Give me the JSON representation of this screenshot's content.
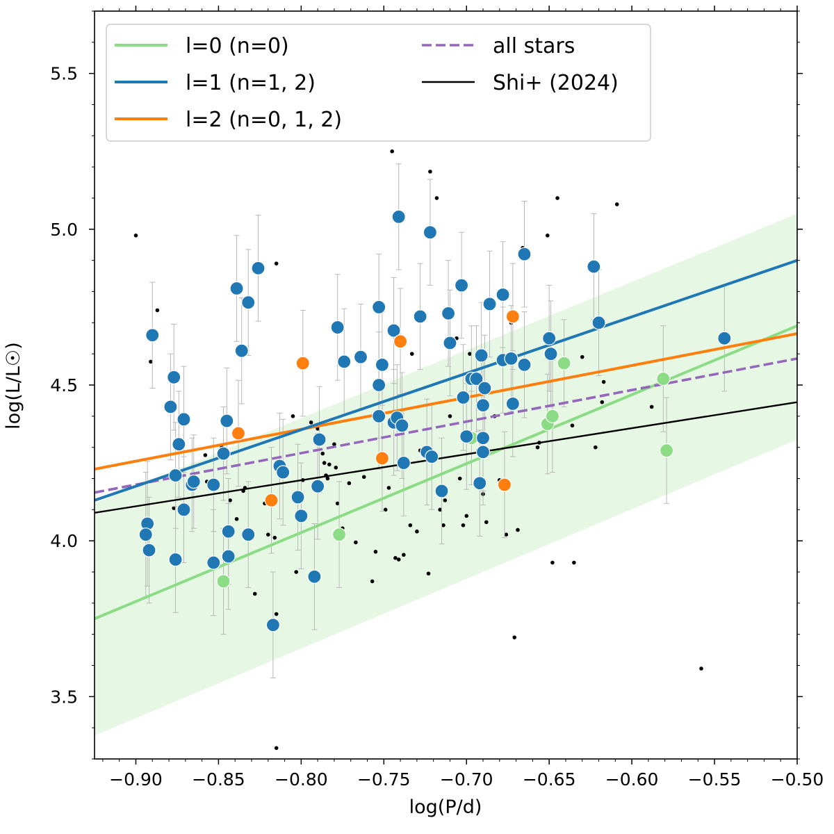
{
  "chart_data": {
    "type": "scatter",
    "title": "",
    "xlabel": "log(P/d)",
    "ylabel": "log(L/L☉)",
    "xlim": [
      -0.925,
      -0.5
    ],
    "ylim": [
      3.3,
      5.7
    ],
    "xticks": [
      -0.9,
      -0.85,
      -0.8,
      -0.75,
      -0.7,
      -0.65,
      -0.6,
      -0.55,
      -0.5
    ],
    "xtick_labels": [
      "−0.90",
      "−0.85",
      "−0.80",
      "−0.75",
      "−0.70",
      "−0.65",
      "−0.60",
      "−0.55",
      "−0.50"
    ],
    "yticks": [
      3.5,
      4.0,
      4.5,
      5.0,
      5.5
    ],
    "ytick_labels": [
      "3.5",
      "4.0",
      "4.5",
      "5.0",
      "5.5"
    ],
    "grid": false,
    "legend_position": "top-left",
    "colors": {
      "l0": "#8bdc85",
      "l1": "#1f77b4",
      "l2": "#ff7f0e",
      "all": "#9467bd",
      "shi": "#000000",
      "band": "#e6f7e4",
      "errorbar": "#b8b8b8",
      "point_edge": "#ffffff"
    },
    "legend": [
      {
        "key": "l0",
        "label": "l=0 (n=0)",
        "style": "solid"
      },
      {
        "key": "l1",
        "label": "l=1 (n=1, 2)",
        "style": "solid"
      },
      {
        "key": "l2",
        "label": "l=2 (n=0, 1, 2)",
        "style": "solid"
      },
      {
        "key": "all",
        "label": "all stars",
        "style": "dashed"
      },
      {
        "key": "shi",
        "label": "Shi+ (2024)",
        "style": "solid-thin"
      }
    ],
    "fits": [
      {
        "key": "l0",
        "points": [
          [
            -0.925,
            3.75
          ],
          [
            -0.5,
            4.69
          ]
        ]
      },
      {
        "key": "l1",
        "points": [
          [
            -0.925,
            4.13
          ],
          [
            -0.5,
            4.9
          ]
        ]
      },
      {
        "key": "l2",
        "points": [
          [
            -0.925,
            4.23
          ],
          [
            -0.5,
            4.665
          ]
        ]
      },
      {
        "key": "all",
        "points": [
          [
            -0.925,
            4.155
          ],
          [
            -0.5,
            4.585
          ]
        ]
      },
      {
        "key": "shi",
        "points": [
          [
            -0.925,
            4.09
          ],
          [
            -0.5,
            4.445
          ]
        ]
      }
    ],
    "band": {
      "key": "l0",
      "upper": [
        [
          -0.925,
          4.12
        ],
        [
          -0.5,
          5.05
        ]
      ],
      "lower": [
        [
          -0.925,
          3.375
        ],
        [
          -0.5,
          4.325
        ]
      ]
    },
    "series": [
      {
        "key": "l0",
        "name": "l=0 (n=0)",
        "points": [
          [
            -0.847,
            3.87,
            0.17
          ],
          [
            -0.777,
            4.02,
            0.17
          ],
          [
            -0.697,
            4.33,
            0.15
          ],
          [
            -0.651,
            4.375,
            0.16
          ],
          [
            -0.648,
            4.4,
            0.18
          ],
          [
            -0.641,
            4.57,
            0.14
          ],
          [
            -0.581,
            4.52,
            0.17
          ],
          [
            -0.579,
            4.29,
            0.17
          ]
        ]
      },
      {
        "key": "l1",
        "name": "l=1 (n=1, 2)",
        "points": [
          [
            -0.89,
            4.66,
            0.17
          ],
          [
            -0.893,
            4.055,
            0.2
          ],
          [
            -0.894,
            4.02,
            0.2
          ],
          [
            -0.892,
            3.97,
            0.17
          ],
          [
            -0.879,
            4.43,
            0.17
          ],
          [
            -0.877,
            4.525,
            0.17
          ],
          [
            -0.876,
            4.21,
            0.17
          ],
          [
            -0.876,
            3.94,
            0.17
          ],
          [
            -0.874,
            4.31,
            0.17
          ],
          [
            -0.871,
            4.39,
            0.17
          ],
          [
            -0.871,
            4.1,
            0.17
          ],
          [
            -0.866,
            4.18,
            0.15
          ],
          [
            -0.865,
            4.19,
            0.15
          ],
          [
            -0.853,
            3.93,
            0.17
          ],
          [
            -0.853,
            4.18,
            0.15
          ],
          [
            -0.847,
            4.28,
            0.15
          ],
          [
            -0.845,
            4.385,
            0.17
          ],
          [
            -0.844,
            4.03,
            0.17
          ],
          [
            -0.844,
            3.95,
            0.17
          ],
          [
            -0.839,
            4.81,
            0.17
          ],
          [
            -0.836,
            4.61,
            0.17
          ],
          [
            -0.832,
            4.765,
            0.17
          ],
          [
            -0.832,
            4.02,
            0.17
          ],
          [
            -0.826,
            4.875,
            0.17
          ],
          [
            -0.817,
            3.73,
            0.17
          ],
          [
            -0.813,
            4.24,
            0.17
          ],
          [
            -0.811,
            4.22,
            0.17
          ],
          [
            -0.802,
            4.14,
            0.17
          ],
          [
            -0.8,
            4.08,
            0.17
          ],
          [
            -0.792,
            3.885,
            0.17
          ],
          [
            -0.79,
            4.175,
            0.17
          ],
          [
            -0.789,
            4.325,
            0.17
          ],
          [
            -0.778,
            4.685,
            0.17
          ],
          [
            -0.774,
            4.575,
            0.17
          ],
          [
            -0.764,
            4.59,
            0.17
          ],
          [
            -0.753,
            4.75,
            0.17
          ],
          [
            -0.753,
            4.5,
            0.17
          ],
          [
            -0.753,
            4.4,
            0.17
          ],
          [
            -0.751,
            4.565,
            0.17
          ],
          [
            -0.744,
            4.675,
            0.17
          ],
          [
            -0.744,
            4.38,
            0.17
          ],
          [
            -0.742,
            4.395,
            0.17
          ],
          [
            -0.741,
            5.04,
            0.17
          ],
          [
            -0.739,
            4.37,
            0.17
          ],
          [
            -0.738,
            4.25,
            0.17
          ],
          [
            -0.728,
            4.72,
            0.17
          ],
          [
            -0.724,
            4.285,
            0.17
          ],
          [
            -0.722,
            4.99,
            0.17
          ],
          [
            -0.721,
            4.27,
            0.17
          ],
          [
            -0.715,
            4.16,
            0.17
          ],
          [
            -0.711,
            4.73,
            0.17
          ],
          [
            -0.71,
            4.635,
            0.17
          ],
          [
            -0.703,
            4.82,
            0.17
          ],
          [
            -0.702,
            4.46,
            0.17
          ],
          [
            -0.7,
            4.335,
            0.17
          ],
          [
            -0.697,
            4.52,
            0.17
          ],
          [
            -0.694,
            4.52,
            0.17
          ],
          [
            -0.692,
            4.185,
            0.17
          ],
          [
            -0.691,
            4.595,
            0.17
          ],
          [
            -0.69,
            4.435,
            0.17
          ],
          [
            -0.69,
            4.33,
            0.17
          ],
          [
            -0.69,
            4.285,
            0.17
          ],
          [
            -0.689,
            4.49,
            0.17
          ],
          [
            -0.686,
            4.76,
            0.17
          ],
          [
            -0.678,
            4.79,
            0.17
          ],
          [
            -0.678,
            4.58,
            0.17
          ],
          [
            -0.673,
            4.585,
            0.17
          ],
          [
            -0.672,
            4.44,
            0.17
          ],
          [
            -0.665,
            4.92,
            0.17
          ],
          [
            -0.665,
            4.565,
            0.17
          ],
          [
            -0.65,
            4.65,
            0.17
          ],
          [
            -0.649,
            4.6,
            0.17
          ],
          [
            -0.623,
            4.88,
            0.17
          ],
          [
            -0.62,
            4.7,
            0.17
          ],
          [
            -0.544,
            4.65,
            0.17
          ]
        ]
      },
      {
        "key": "l2",
        "name": "l=2 (n=0, 1, 2)",
        "points": [
          [
            -0.838,
            4.345,
            0.17
          ],
          [
            -0.818,
            4.13,
            0.17
          ],
          [
            -0.799,
            4.57,
            0.17
          ],
          [
            -0.751,
            4.265,
            0.17
          ],
          [
            -0.74,
            4.64,
            0.17
          ],
          [
            -0.677,
            4.18,
            0.17
          ],
          [
            -0.672,
            4.72,
            0.17
          ]
        ]
      },
      {
        "key": "all",
        "name": "",
        "points": [
          [
            -0.9,
            4.98
          ],
          [
            -0.887,
            4.74
          ],
          [
            -0.891,
            4.575
          ],
          [
            -0.877,
            4.105
          ],
          [
            -0.858,
            4.275
          ],
          [
            -0.857,
            4.19
          ],
          [
            -0.848,
            4.3
          ],
          [
            -0.843,
            4.13
          ],
          [
            -0.839,
            4.07
          ],
          [
            -0.835,
            4.16
          ],
          [
            -0.834,
            4.17
          ],
          [
            -0.828,
            3.83
          ],
          [
            -0.822,
            4.12
          ],
          [
            -0.82,
            4.02
          ],
          [
            -0.815,
            4.89
          ],
          [
            -0.815,
            3.765
          ],
          [
            -0.816,
            4.01
          ],
          [
            -0.815,
            3.335
          ],
          [
            -0.805,
            4.4
          ],
          [
            -0.803,
            3.9
          ],
          [
            -0.799,
            4.195
          ],
          [
            -0.794,
            4.38
          ],
          [
            -0.79,
            4.36
          ],
          [
            -0.787,
            4.28
          ],
          [
            -0.786,
            4.25
          ],
          [
            -0.785,
            4.21
          ],
          [
            -0.784,
            4.2
          ],
          [
            -0.783,
            4.245
          ],
          [
            -0.78,
            4.31
          ],
          [
            -0.779,
            4.235
          ],
          [
            -0.778,
            4.12
          ],
          [
            -0.775,
            4.04
          ],
          [
            -0.771,
            4.185
          ],
          [
            -0.767,
            3.995
          ],
          [
            -0.762,
            4.205
          ],
          [
            -0.757,
            3.87
          ],
          [
            -0.755,
            3.965
          ],
          [
            -0.749,
            4.1
          ],
          [
            -0.747,
            4.17
          ],
          [
            -0.745,
            5.25
          ],
          [
            -0.743,
            3.945
          ],
          [
            -0.741,
            3.94
          ],
          [
            -0.738,
            3.955
          ],
          [
            -0.734,
            4.05
          ],
          [
            -0.733,
            4.6
          ],
          [
            -0.73,
            4.03
          ],
          [
            -0.728,
            4.29
          ],
          [
            -0.723,
            3.895
          ],
          [
            -0.722,
            5.185
          ],
          [
            -0.718,
            5.1
          ],
          [
            -0.716,
            4.1
          ],
          [
            -0.714,
            4.05
          ],
          [
            -0.713,
            4.13
          ],
          [
            -0.71,
            4.4
          ],
          [
            -0.706,
            4.65
          ],
          [
            -0.704,
            4.2
          ],
          [
            -0.702,
            4.05
          ],
          [
            -0.7,
            4.08
          ],
          [
            -0.698,
            4.6
          ],
          [
            -0.693,
            4.29
          ],
          [
            -0.69,
            4.15
          ],
          [
            -0.688,
            4.06
          ],
          [
            -0.683,
            4.4
          ],
          [
            -0.68,
            4.195
          ],
          [
            -0.677,
            4.18
          ],
          [
            -0.676,
            4.02
          ],
          [
            -0.673,
            4.7
          ],
          [
            -0.671,
            3.69
          ],
          [
            -0.669,
            4.035
          ],
          [
            -0.666,
            4.94
          ],
          [
            -0.657,
            4.3
          ],
          [
            -0.656,
            4.315
          ],
          [
            -0.651,
            4.98
          ],
          [
            -0.648,
            3.93
          ],
          [
            -0.645,
            5.1
          ],
          [
            -0.643,
            4.58
          ],
          [
            -0.636,
            4.37
          ],
          [
            -0.635,
            3.93
          ],
          [
            -0.63,
            4.59
          ],
          [
            -0.622,
            4.3
          ],
          [
            -0.618,
            4.445
          ],
          [
            -0.617,
            4.51
          ],
          [
            -0.609,
            5.08
          ],
          [
            -0.588,
            4.43
          ],
          [
            -0.581,
            4.3
          ],
          [
            -0.558,
            3.59
          ]
        ]
      }
    ]
  }
}
